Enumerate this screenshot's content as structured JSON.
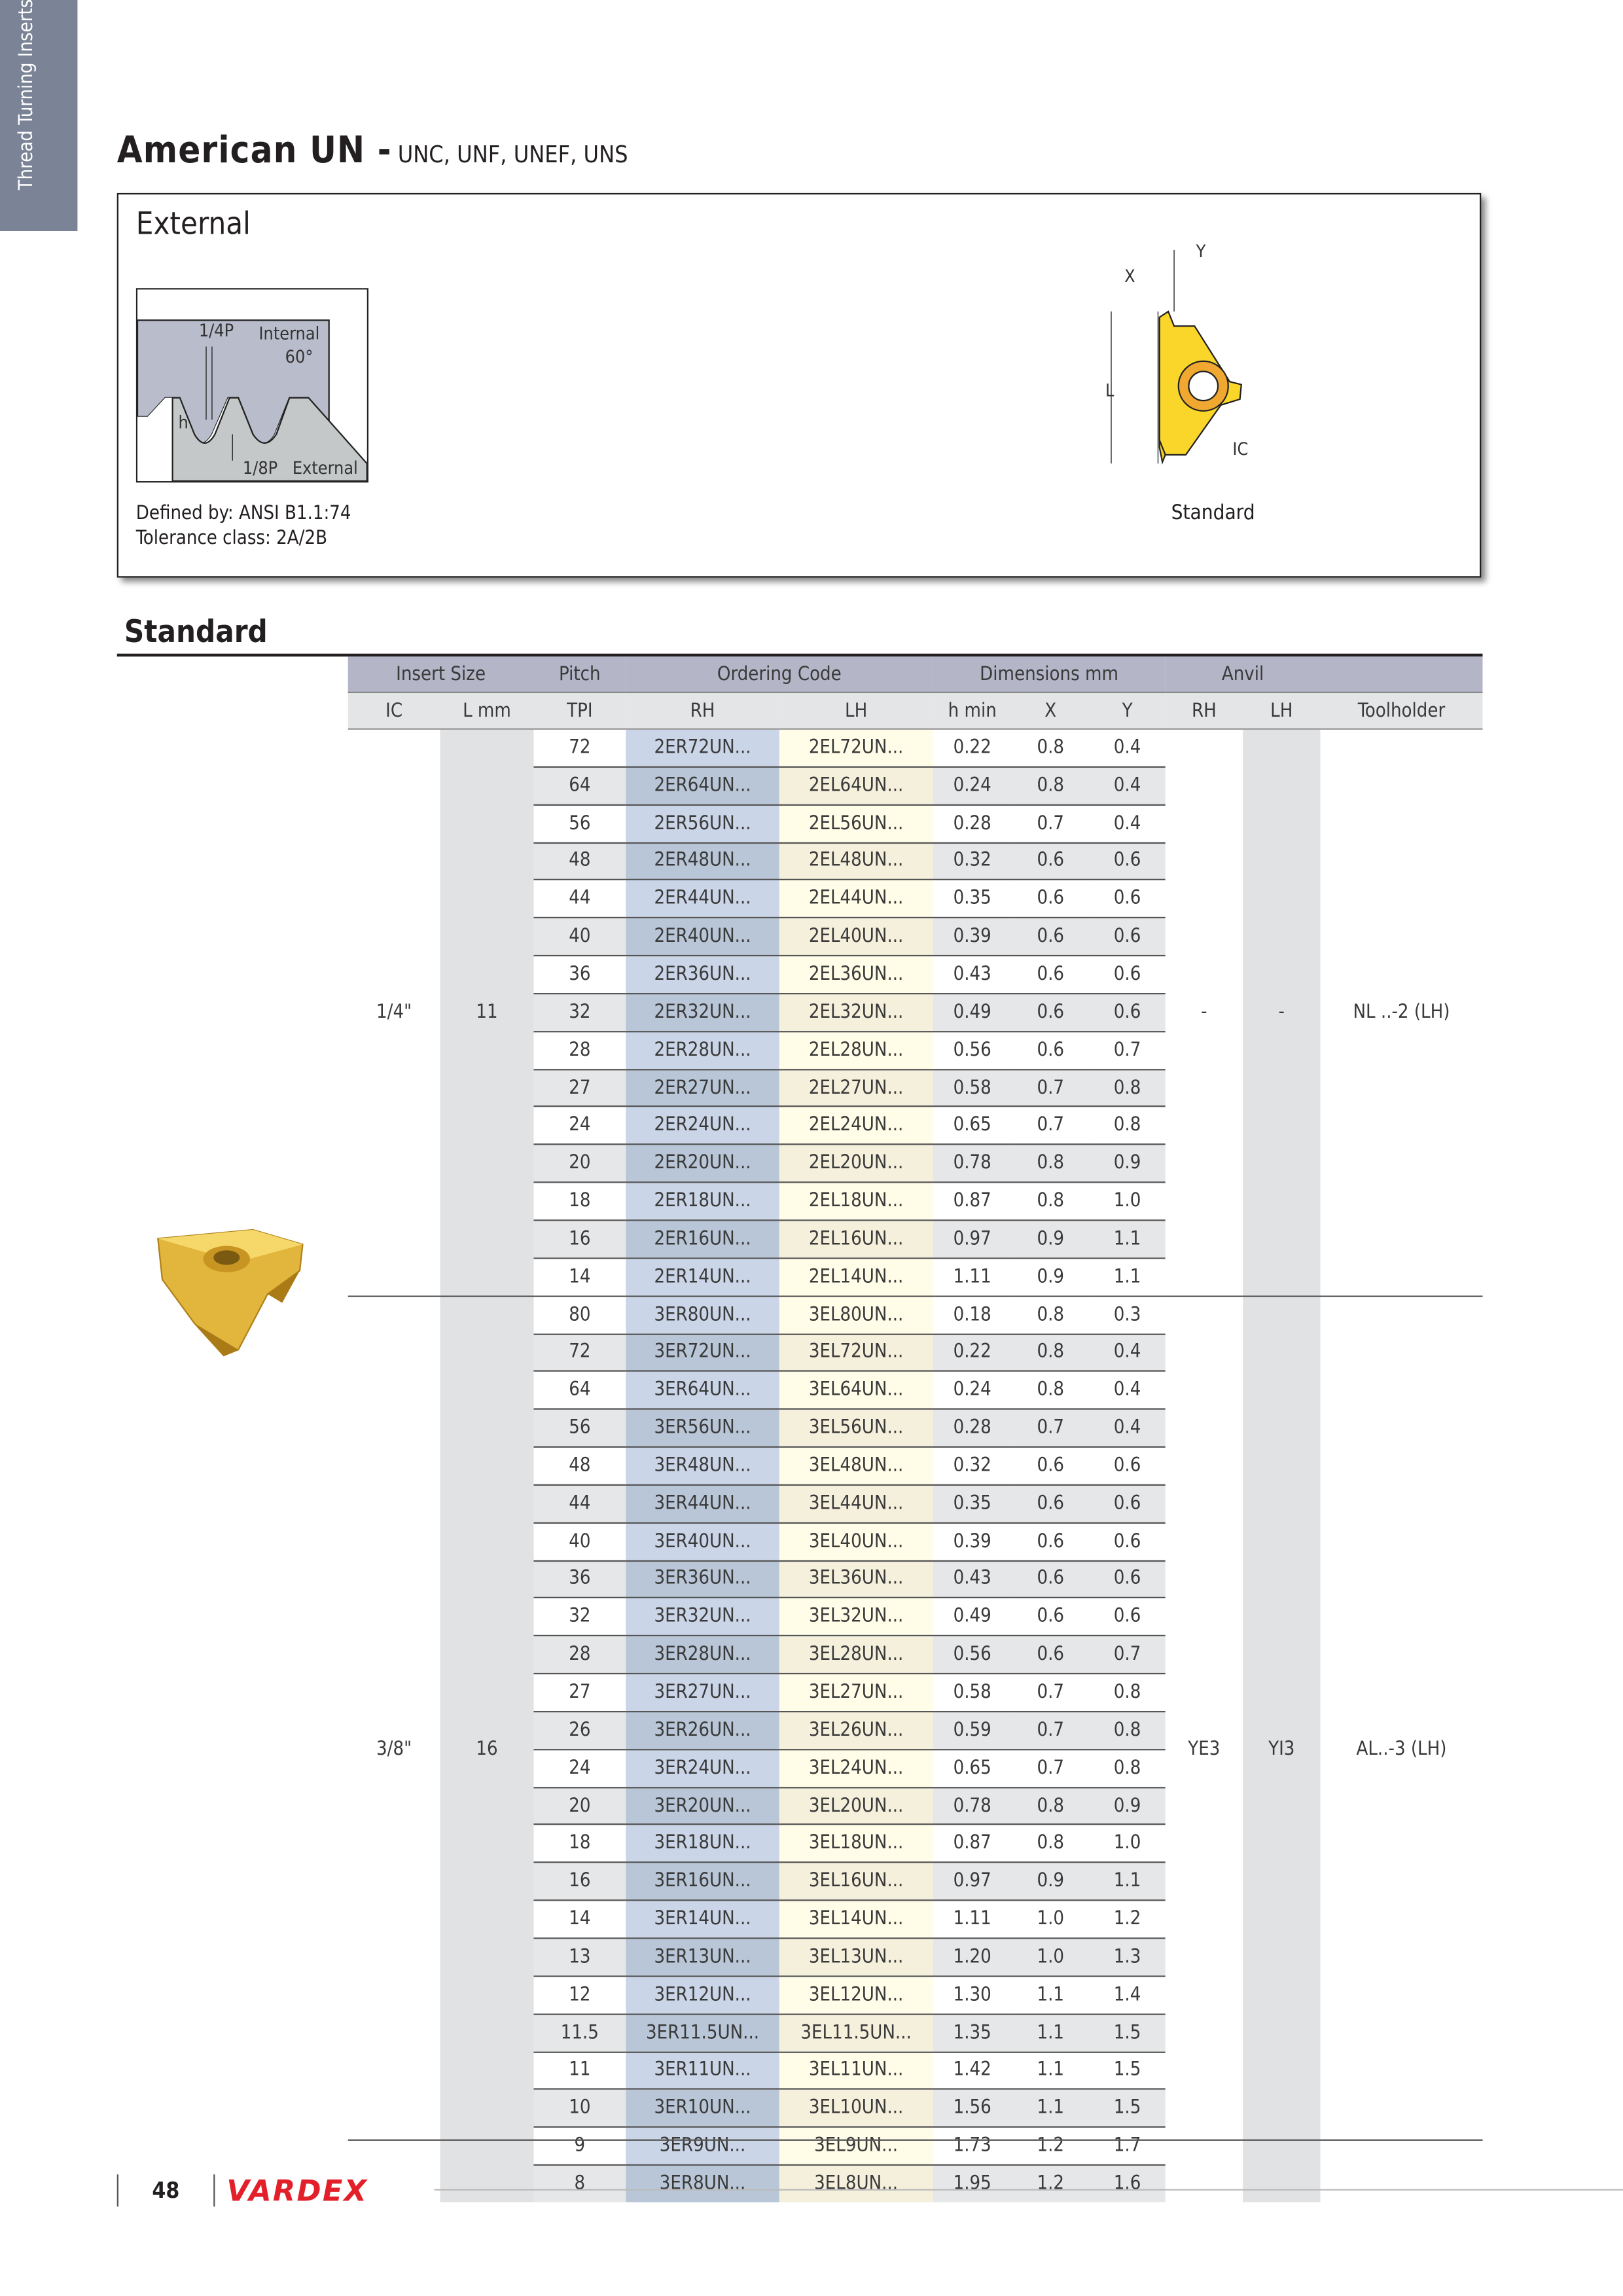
{
  "side_tab": "Thread Turning Inserts",
  "title": {
    "main": "American UN -",
    "sub": "UNC, UNF, UNEF, UNS"
  },
  "info_box": {
    "heading": "External",
    "thread_labels": {
      "quarter_p": "1/4P",
      "internal": "Internal",
      "angle": "60°",
      "h": "h",
      "eighth_p": "1/8P",
      "external": "External"
    },
    "insert_labels": {
      "x": "X",
      "y": "Y",
      "l": "L",
      "ic": "IC"
    },
    "defined_by": "Defined by: ANSI B1.1:74",
    "tolerance": "Tolerance class: 2A/2B",
    "insert_caption": "Standard"
  },
  "section_title": "Standard",
  "table": {
    "group_headers": [
      "Insert Size",
      "Pitch",
      "Ordering Code",
      "Dimensions mm",
      "Anvil",
      ""
    ],
    "columns": [
      "IC",
      "L mm",
      "TPI",
      "RH",
      "LH",
      "h min",
      "X",
      "Y",
      "RH",
      "LH",
      "Toolholder"
    ],
    "colors": {
      "header": "#b4b5c7",
      "subheader": "#e4e5e6",
      "rh": "#cbd5e8",
      "lh": "#fffde7"
    },
    "groups": [
      {
        "ic": "1/4\"",
        "l": "11",
        "anvil_rh": "-",
        "anvil_lh": "-",
        "toolholder": "NL ..-2 (LH)",
        "rows": [
          [
            "72",
            "2ER72UN...",
            "2EL72UN...",
            "0.22",
            "0.8",
            "0.4"
          ],
          [
            "64",
            "2ER64UN...",
            "2EL64UN...",
            "0.24",
            "0.8",
            "0.4"
          ],
          [
            "56",
            "2ER56UN...",
            "2EL56UN...",
            "0.28",
            "0.7",
            "0.4"
          ],
          [
            "48",
            "2ER48UN...",
            "2EL48UN...",
            "0.32",
            "0.6",
            "0.6"
          ],
          [
            "44",
            "2ER44UN...",
            "2EL44UN...",
            "0.35",
            "0.6",
            "0.6"
          ],
          [
            "40",
            "2ER40UN...",
            "2EL40UN...",
            "0.39",
            "0.6",
            "0.6"
          ],
          [
            "36",
            "2ER36UN...",
            "2EL36UN...",
            "0.43",
            "0.6",
            "0.6"
          ],
          [
            "32",
            "2ER32UN...",
            "2EL32UN...",
            "0.49",
            "0.6",
            "0.6"
          ],
          [
            "28",
            "2ER28UN...",
            "2EL28UN...",
            "0.56",
            "0.6",
            "0.7"
          ],
          [
            "27",
            "2ER27UN...",
            "2EL27UN...",
            "0.58",
            "0.7",
            "0.8"
          ],
          [
            "24",
            "2ER24UN...",
            "2EL24UN...",
            "0.65",
            "0.7",
            "0.8"
          ],
          [
            "20",
            "2ER20UN...",
            "2EL20UN...",
            "0.78",
            "0.8",
            "0.9"
          ],
          [
            "18",
            "2ER18UN...",
            "2EL18UN...",
            "0.87",
            "0.8",
            "1.0"
          ],
          [
            "16",
            "2ER16UN...",
            "2EL16UN...",
            "0.97",
            "0.9",
            "1.1"
          ],
          [
            "14",
            "2ER14UN...",
            "2EL14UN...",
            "1.11",
            "0.9",
            "1.1"
          ]
        ]
      },
      {
        "ic": "3/8\"",
        "l": "16",
        "anvil_rh": "YE3",
        "anvil_lh": "YI3",
        "toolholder": "AL..-3 (LH)",
        "rows": [
          [
            "80",
            "3ER80UN...",
            "3EL80UN...",
            "0.18",
            "0.8",
            "0.3"
          ],
          [
            "72",
            "3ER72UN...",
            "3EL72UN...",
            "0.22",
            "0.8",
            "0.4"
          ],
          [
            "64",
            "3ER64UN...",
            "3EL64UN...",
            "0.24",
            "0.8",
            "0.4"
          ],
          [
            "56",
            "3ER56UN...",
            "3EL56UN...",
            "0.28",
            "0.7",
            "0.4"
          ],
          [
            "48",
            "3ER48UN...",
            "3EL48UN...",
            "0.32",
            "0.6",
            "0.6"
          ],
          [
            "44",
            "3ER44UN...",
            "3EL44UN...",
            "0.35",
            "0.6",
            "0.6"
          ],
          [
            "40",
            "3ER40UN...",
            "3EL40UN...",
            "0.39",
            "0.6",
            "0.6"
          ],
          [
            "36",
            "3ER36UN...",
            "3EL36UN...",
            "0.43",
            "0.6",
            "0.6"
          ],
          [
            "32",
            "3ER32UN...",
            "3EL32UN...",
            "0.49",
            "0.6",
            "0.6"
          ],
          [
            "28",
            "3ER28UN...",
            "3EL28UN...",
            "0.56",
            "0.6",
            "0.7"
          ],
          [
            "27",
            "3ER27UN...",
            "3EL27UN...",
            "0.58",
            "0.7",
            "0.8"
          ],
          [
            "26",
            "3ER26UN...",
            "3EL26UN...",
            "0.59",
            "0.7",
            "0.8"
          ],
          [
            "24",
            "3ER24UN...",
            "3EL24UN...",
            "0.65",
            "0.7",
            "0.8"
          ],
          [
            "20",
            "3ER20UN...",
            "3EL20UN...",
            "0.78",
            "0.8",
            "0.9"
          ],
          [
            "18",
            "3ER18UN...",
            "3EL18UN...",
            "0.87",
            "0.8",
            "1.0"
          ],
          [
            "16",
            "3ER16UN...",
            "3EL16UN...",
            "0.97",
            "0.9",
            "1.1"
          ],
          [
            "14",
            "3ER14UN...",
            "3EL14UN...",
            "1.11",
            "1.0",
            "1.2"
          ],
          [
            "13",
            "3ER13UN...",
            "3EL13UN...",
            "1.20",
            "1.0",
            "1.3"
          ],
          [
            "12",
            "3ER12UN...",
            "3EL12UN...",
            "1.30",
            "1.1",
            "1.4"
          ],
          [
            "11.5",
            "3ER11.5UN...",
            "3EL11.5UN...",
            "1.35",
            "1.1",
            "1.5"
          ],
          [
            "11",
            "3ER11UN...",
            "3EL11UN...",
            "1.42",
            "1.1",
            "1.5"
          ],
          [
            "10",
            "3ER10UN...",
            "3EL10UN...",
            "1.56",
            "1.1",
            "1.5"
          ],
          [
            "9",
            "3ER9UN...",
            "3EL9UN...",
            "1.73",
            "1.2",
            "1.7"
          ],
          [
            "8",
            "3ER8UN...",
            "3EL8UN...",
            "1.95",
            "1.2",
            "1.6"
          ]
        ]
      }
    ]
  },
  "footer": {
    "page_number": "48",
    "logo": "VARDEX",
    "logo_color": "#e3202a"
  }
}
